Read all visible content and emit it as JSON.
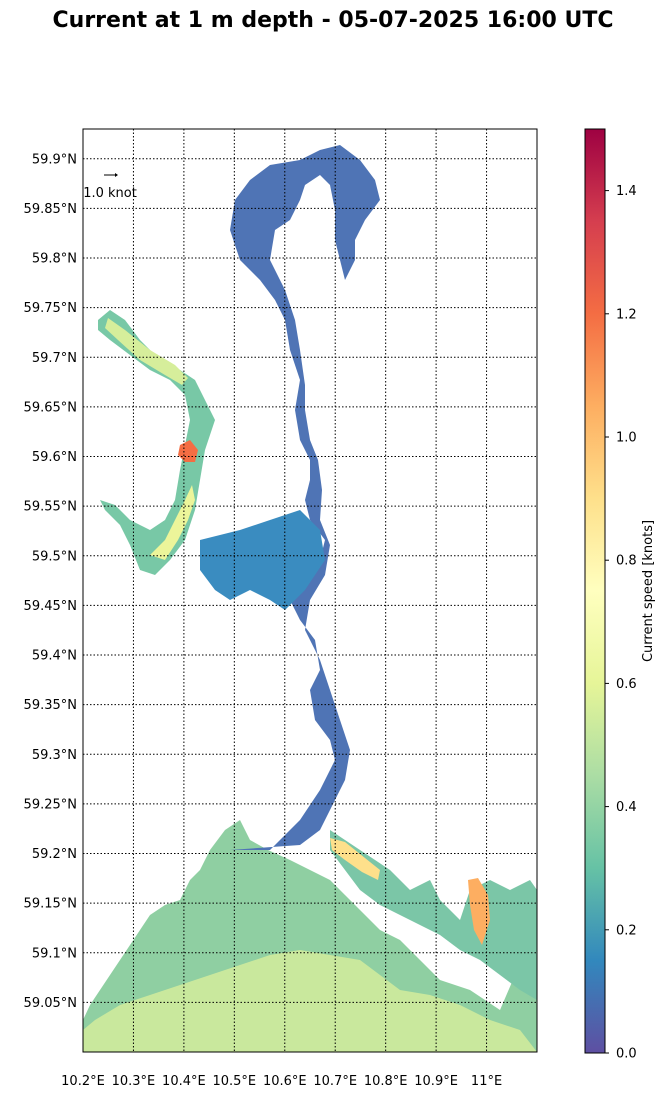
{
  "title": "Current at 1 m depth - 05-07-2025 16:00 UTC",
  "map": {
    "lat_range": [
      59.0,
      59.93
    ],
    "lon_range": [
      10.2,
      11.1
    ],
    "lat_ticks": [
      59.05,
      59.1,
      59.15,
      59.2,
      59.25,
      59.3,
      59.35,
      59.4,
      59.45,
      59.5,
      59.55,
      59.6,
      59.65,
      59.7,
      59.75,
      59.8,
      59.85,
      59.9
    ],
    "lat_tick_labels": [
      "59.05°N",
      "59.1°N",
      "59.15°N",
      "59.2°N",
      "59.25°N",
      "59.3°N",
      "59.35°N",
      "59.4°N",
      "59.45°N",
      "59.5°N",
      "59.55°N",
      "59.6°N",
      "59.65°N",
      "59.7°N",
      "59.75°N",
      "59.8°N",
      "59.85°N",
      "59.9°N"
    ],
    "lon_ticks": [
      10.2,
      10.3,
      10.4,
      10.5,
      10.6,
      10.7,
      10.8,
      10.9,
      11.0
    ],
    "lon_tick_labels": [
      "10.2°E",
      "10.3°E",
      "10.4°E",
      "10.5°E",
      "10.6°E",
      "10.7°E",
      "10.8°E",
      "10.9°E",
      "11°E"
    ],
    "grid": true,
    "reference_arrow_label": "1.0 knot"
  },
  "colorbar": {
    "label": "Current speed [knots]",
    "range": [
      0,
      1.5
    ],
    "ticks": [
      0.0,
      0.2,
      0.4,
      0.6,
      0.8,
      1.0,
      1.2,
      1.4
    ],
    "tick_labels": [
      "0.0",
      "0.2",
      "0.4",
      "0.6",
      "0.8",
      "1.0",
      "1.2",
      "1.4"
    ],
    "colormap": "Spectral_r",
    "colors": [
      "#5e4fa2",
      "#3288bd",
      "#66c2a5",
      "#abdda4",
      "#e6f598",
      "#ffffbf",
      "#fee08b",
      "#fdae61",
      "#f46d43",
      "#d53e4f",
      "#9e0142"
    ]
  }
}
